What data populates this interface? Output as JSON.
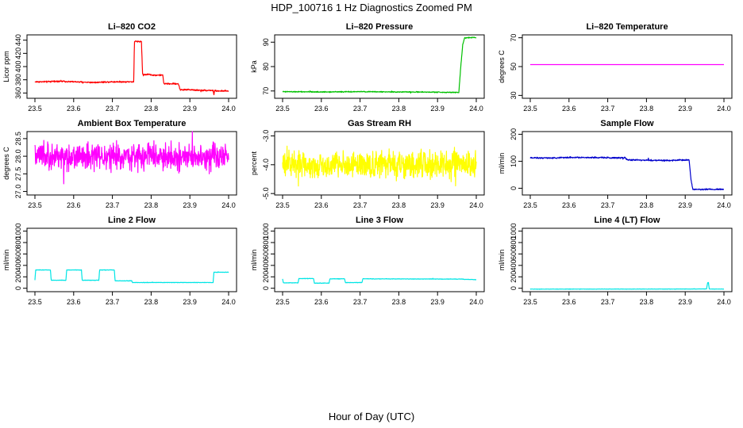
{
  "figure": {
    "title": "HDP_100716  1 Hz Diagnostics Zoomed PM",
    "xlabel": "Hour of Day (UTC)"
  },
  "chart_data": [
    {
      "type": "line",
      "title": "Li–820 CO2",
      "ylabel": "Licor ppm",
      "color": "#ff0000",
      "xlim": [
        23.5,
        24.0
      ],
      "xticks": [
        "23.5",
        "23.6",
        "23.7",
        "23.8",
        "23.9",
        "24.0"
      ],
      "ylim": [
        352,
        448
      ],
      "yticks": [
        "360",
        "380",
        "400",
        "420",
        "440"
      ],
      "noise": 0.8,
      "series": [
        {
          "x": [
            23.5,
            23.53,
            23.56,
            23.6,
            23.65,
            23.7,
            23.75,
            23.755,
            23.757,
            23.775,
            23.778,
            23.8,
            23.803,
            23.83,
            23.833,
            23.85,
            23.87,
            23.875,
            23.9,
            23.93,
            23.96,
            23.962,
            23.964,
            23.97,
            24.0
          ],
          "y": [
            377,
            377,
            378,
            377,
            376,
            377,
            377,
            377,
            438,
            438,
            388,
            388,
            387,
            387,
            374,
            374,
            374,
            365,
            365,
            364,
            364,
            357,
            364,
            363,
            363
          ]
        }
      ]
    },
    {
      "type": "line",
      "title": "Li–820 Pressure",
      "ylabel": "kPa",
      "color": "#00c000",
      "xlim": [
        23.5,
        24.0
      ],
      "xticks": [
        "23.5",
        "23.6",
        "23.7",
        "23.8",
        "23.9",
        "24.0"
      ],
      "ylim": [
        67,
        93
      ],
      "yticks": [
        "70",
        "80",
        "90"
      ],
      "noise": 0.15,
      "series": [
        {
          "x": [
            23.5,
            23.6,
            23.7,
            23.8,
            23.9,
            23.955,
            23.96,
            23.965,
            23.97,
            23.98,
            24.0
          ],
          "y": [
            69.7,
            69.6,
            69.7,
            69.6,
            69.5,
            69.4,
            80,
            89,
            91.8,
            91.9,
            91.9
          ]
        }
      ]
    },
    {
      "type": "line",
      "title": "Li–820 Temperature",
      "ylabel": "degrees C",
      "color": "#ff00ff",
      "xlim": [
        23.5,
        24.0
      ],
      "xticks": [
        "23.5",
        "23.6",
        "23.7",
        "23.8",
        "23.9",
        "24.0"
      ],
      "ylim": [
        28,
        72
      ],
      "yticks": [
        "30",
        "50",
        "70"
      ],
      "noise": 0,
      "series": [
        {
          "x": [
            23.5,
            24.0
          ],
          "y": [
            51.4,
            51.4
          ]
        }
      ]
    },
    {
      "type": "line",
      "title": "Ambient Box Temperature",
      "ylabel": "degrees C",
      "color": "#ff00ff",
      "xlim": [
        23.5,
        24.0
      ],
      "xticks": [
        "23.5",
        "23.6",
        "23.7",
        "23.8",
        "23.9",
        "24.0"
      ],
      "ylim": [
        26.9,
        28.7
      ],
      "yticks": [
        "27.0",
        "27.5",
        "28.0",
        "28.5"
      ],
      "noise": 0.28,
      "series": [
        {
          "x": [
            23.5,
            24.0
          ],
          "y": [
            27.98,
            27.98
          ]
        }
      ]
    },
    {
      "type": "line",
      "title": "Gas Stream RH",
      "ylabel": "percent",
      "color": "#ffff00",
      "xlim": [
        23.5,
        24.0
      ],
      "xticks": [
        "23.5",
        "23.6",
        "23.7",
        "23.8",
        "23.9",
        "24.0"
      ],
      "ylim": [
        -5.05,
        -2.85
      ],
      "yticks": [
        "-5.0",
        "-4.0",
        "-3.0"
      ],
      "noise": 0.35,
      "series": [
        {
          "x": [
            23.5,
            24.0
          ],
          "y": [
            -4.0,
            -4.0
          ]
        }
      ]
    },
    {
      "type": "line",
      "title": "Sample Flow",
      "ylabel": "ml/min",
      "color": "#0000cc",
      "xlim": [
        23.5,
        24.0
      ],
      "xticks": [
        "23.5",
        "23.6",
        "23.7",
        "23.8",
        "23.9",
        "24.0"
      ],
      "ylim": [
        -25,
        210
      ],
      "yticks": [
        "0",
        "100",
        "200"
      ],
      "noise": 2,
      "series": [
        {
          "x": [
            23.5,
            23.55,
            23.6,
            23.7,
            23.745,
            23.75,
            23.8,
            23.85,
            23.9,
            23.91,
            23.915,
            23.92,
            23.95,
            24.0
          ],
          "y": [
            113,
            112,
            114,
            113,
            113,
            105,
            104,
            103,
            105,
            105,
            30,
            -5,
            -4,
            -4
          ]
        }
      ]
    },
    {
      "type": "line",
      "title": "Line 2 Flow",
      "ylabel": "ml/min",
      "color": "#00e5e5",
      "xlim": [
        23.5,
        24.0
      ],
      "xticks": [
        "23.5",
        "23.6",
        "23.7",
        "23.8",
        "23.9",
        "24.0"
      ],
      "ylim": [
        -60,
        1050
      ],
      "yticks": [
        "0",
        "200",
        "400",
        "600",
        "800",
        "1000"
      ],
      "noise": 3,
      "series": [
        {
          "x": [
            23.5,
            23.502,
            23.54,
            23.542,
            23.58,
            23.582,
            23.62,
            23.622,
            23.665,
            23.667,
            23.705,
            23.707,
            23.75,
            23.752,
            23.96,
            23.962,
            24.0
          ],
          "y": [
            140,
            320,
            320,
            140,
            140,
            320,
            320,
            140,
            140,
            320,
            320,
            130,
            130,
            100,
            100,
            280,
            280
          ]
        }
      ]
    },
    {
      "type": "line",
      "title": "Line 3 Flow",
      "ylabel": "ml/min",
      "color": "#00e5e5",
      "xlim": [
        23.5,
        24.0
      ],
      "xticks": [
        "23.5",
        "23.6",
        "23.7",
        "23.8",
        "23.9",
        "24.0"
      ],
      "ylim": [
        -60,
        1050
      ],
      "yticks": [
        "0",
        "200",
        "400",
        "600",
        "800",
        "1000"
      ],
      "noise": 3,
      "series": [
        {
          "x": [
            23.5,
            23.502,
            23.54,
            23.542,
            23.58,
            23.582,
            23.62,
            23.622,
            23.66,
            23.662,
            23.705,
            23.707,
            23.96,
            24.0
          ],
          "y": [
            160,
            95,
            95,
            170,
            170,
            90,
            90,
            165,
            165,
            100,
            100,
            165,
            160,
            150
          ]
        }
      ]
    },
    {
      "type": "line",
      "title": "Line 4 (LT) Flow",
      "ylabel": "ml/min",
      "color": "#00e5e5",
      "xlim": [
        23.5,
        24.0
      ],
      "xticks": [
        "23.5",
        "23.6",
        "23.7",
        "23.8",
        "23.9",
        "24.0"
      ],
      "ylim": [
        -60,
        1050
      ],
      "yticks": [
        "0",
        "200",
        "400",
        "600",
        "800",
        "1000"
      ],
      "noise": 2,
      "series": [
        {
          "x": [
            23.5,
            23.9,
            23.955,
            23.958,
            23.96,
            23.962,
            23.965,
            24.0
          ],
          "y": [
            -15,
            -14,
            -12,
            100,
            100,
            -12,
            -14,
            -14
          ]
        }
      ]
    }
  ]
}
